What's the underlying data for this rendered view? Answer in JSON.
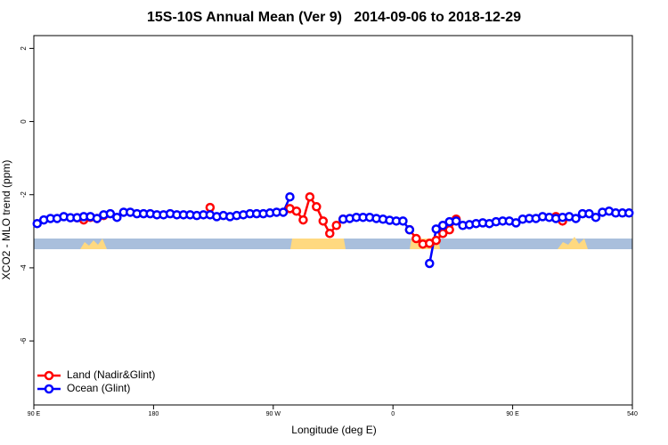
{
  "chart_data": {
    "type": "line",
    "title": "15S-10S Annual Mean (Ver 9)   2014-09-06 to 2018-12-29",
    "x_label": "Longitude (deg E)",
    "y_label": "XCO2 - MLO trend (ppm)",
    "x": [
      92.5,
      97.5,
      102.5,
      107.5,
      112.5,
      117.5,
      122.5,
      127.5,
      132.5,
      137.5,
      142.5,
      147.5,
      152.5,
      157.5,
      162.5,
      167.5,
      172.5,
      177.5,
      182.5,
      187.5,
      192.5,
      197.5,
      202.5,
      207.5,
      212.5,
      217.5,
      222.5,
      227.5,
      232.5,
      237.5,
      242.5,
      247.5,
      252.5,
      257.5,
      262.5,
      267.5,
      272.5,
      277.5,
      282.5,
      287.5,
      292.5,
      297.5,
      302.5,
      307.5,
      312.5,
      317.5,
      322.5,
      327.5,
      332.5,
      337.5,
      342.5,
      347.5,
      352.5,
      357.5,
      362.5,
      367.5,
      372.5,
      377.5,
      382.5,
      387.5,
      392.5,
      397.5,
      402.5,
      407.5,
      412.5,
      417.5,
      422.5,
      427.5,
      432.5,
      437.5,
      442.5,
      447.5,
      452.5,
      457.5,
      462.5,
      467.5,
      472.5,
      477.5,
      482.5,
      487.5,
      492.5,
      497.5,
      502.5,
      507.5,
      512.5,
      517.5,
      522.5,
      527.5,
      532.5,
      537.5
    ],
    "series": [
      {
        "name": "Land (Nadir&Glint)",
        "color": "#ff0000",
        "values": [
          null,
          null,
          null,
          null,
          null,
          null,
          -2.63,
          -2.69,
          -2.62,
          -2.65,
          -2.57,
          null,
          null,
          null,
          null,
          null,
          null,
          null,
          null,
          null,
          null,
          null,
          null,
          null,
          null,
          null,
          -2.35,
          null,
          null,
          null,
          null,
          null,
          null,
          null,
          null,
          null,
          null,
          null,
          -2.38,
          -2.45,
          -2.69,
          -2.06,
          -2.33,
          -2.72,
          -3.06,
          -2.84,
          -2.67,
          null,
          null,
          null,
          null,
          null,
          null,
          null,
          null,
          null,
          -2.96,
          -3.2,
          -3.35,
          -3.33,
          -3.25,
          -3.06,
          -2.96,
          -2.67,
          null,
          null,
          null,
          null,
          null,
          null,
          null,
          null,
          null,
          null,
          null,
          null,
          null,
          null,
          -2.6,
          -2.72,
          null,
          null,
          null,
          null,
          null,
          null,
          null,
          null,
          null,
          null
        ]
      },
      {
        "name": "Ocean (Glint)",
        "color": "#0000ff",
        "values": [
          -2.79,
          -2.69,
          -2.65,
          -2.65,
          -2.6,
          -2.63,
          -2.63,
          -2.6,
          -2.6,
          -2.65,
          -2.55,
          -2.52,
          -2.62,
          -2.48,
          -2.48,
          -2.52,
          -2.52,
          -2.52,
          -2.55,
          -2.55,
          -2.52,
          -2.55,
          -2.55,
          -2.55,
          -2.57,
          -2.55,
          -2.55,
          -2.6,
          -2.57,
          -2.6,
          -2.57,
          -2.55,
          -2.52,
          -2.52,
          -2.52,
          -2.5,
          -2.48,
          -2.48,
          -2.06,
          null,
          null,
          null,
          null,
          null,
          null,
          null,
          -2.67,
          -2.65,
          -2.62,
          -2.62,
          -2.62,
          -2.65,
          -2.67,
          -2.7,
          -2.72,
          -2.72,
          -2.96,
          null,
          null,
          -3.88,
          -2.94,
          -2.84,
          -2.74,
          -2.72,
          -2.84,
          -2.82,
          -2.79,
          -2.77,
          -2.79,
          -2.74,
          -2.72,
          -2.72,
          -2.77,
          -2.67,
          -2.65,
          -2.65,
          -2.6,
          -2.62,
          -2.65,
          -2.62,
          -2.6,
          -2.65,
          -2.52,
          -2.52,
          -2.62,
          -2.48,
          -2.45,
          -2.5,
          -2.5,
          -2.5
        ]
      }
    ],
    "xlim": [
      90,
      540
    ],
    "xticks": [
      {
        "value": 90,
        "label": "90 E"
      },
      180,
      {
        "value": 270,
        "label": "90 W"
      },
      {
        "value": 360,
        "label": "0"
      },
      {
        "value": 450,
        "label": "90 E"
      },
      540
    ],
    "ylim": [
      -7.75,
      2.35
    ],
    "yticks": [
      -6,
      -4,
      -2,
      0,
      2
    ],
    "legend": "bottom-left"
  }
}
